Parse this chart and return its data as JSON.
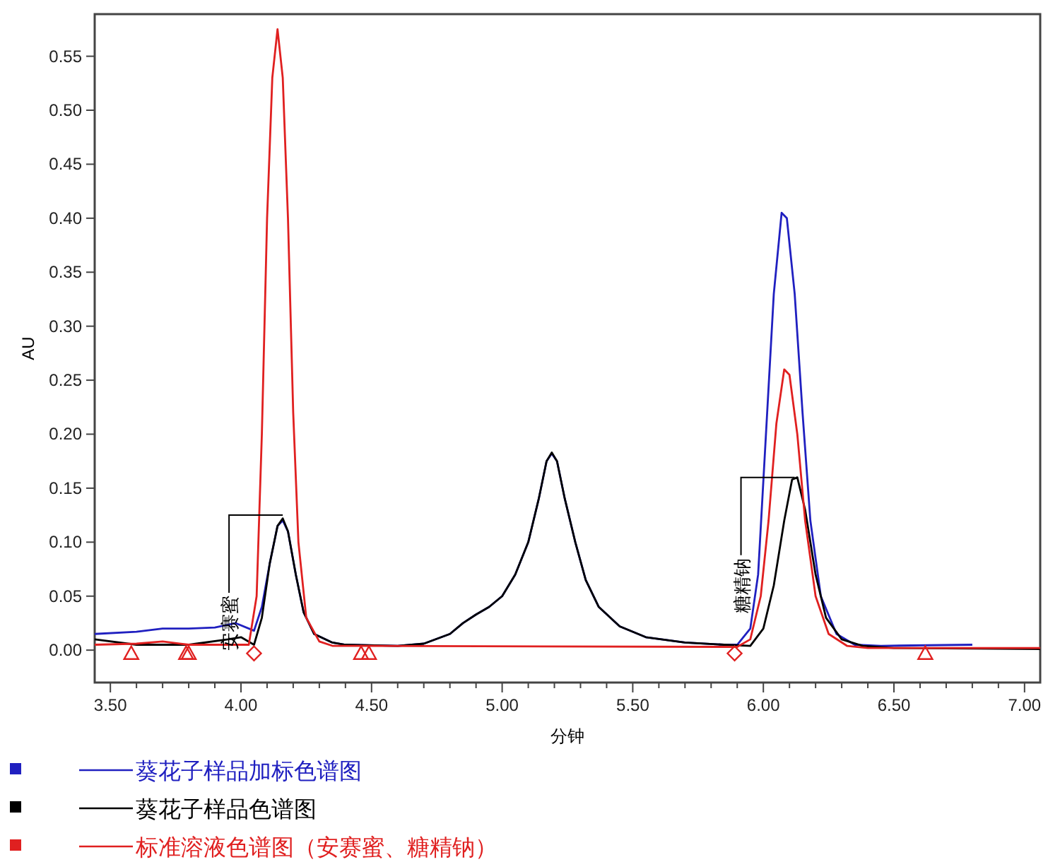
{
  "chart_data": {
    "type": "line",
    "xlabel": "分钟",
    "ylabel": "AU",
    "xlim": [
      3.44,
      7.06
    ],
    "ylim": [
      -0.03,
      0.589
    ],
    "xticks": [
      {
        "value": 3.5,
        "label": "3.50"
      },
      {
        "value": 4.0,
        "label": "4.00"
      },
      {
        "value": 4.5,
        "label": "4.50"
      },
      {
        "value": 5.0,
        "label": "5.00"
      },
      {
        "value": 5.5,
        "label": "5.50"
      },
      {
        "value": 6.0,
        "label": "6.00"
      },
      {
        "value": 6.5,
        "label": "6.50"
      },
      {
        "value": 7.0,
        "label": "7.00"
      }
    ],
    "yticks": [
      {
        "value": 0,
        "label": "0.00"
      },
      {
        "value": 0.05,
        "label": "0.05"
      },
      {
        "value": 0.1,
        "label": "0.10"
      },
      {
        "value": 0.15,
        "label": "0.15"
      },
      {
        "value": 0.2,
        "label": "0.20"
      },
      {
        "value": 0.25,
        "label": "0.25"
      },
      {
        "value": 0.3,
        "label": "0.30"
      },
      {
        "value": 0.35,
        "label": "0.35"
      },
      {
        "value": 0.4,
        "label": "0.40"
      },
      {
        "value": 0.45,
        "label": "0.45"
      },
      {
        "value": 0.5,
        "label": "0.50"
      },
      {
        "value": 0.55,
        "label": "0.55"
      }
    ],
    "grid": false,
    "legend": "bottom",
    "annotations": [
      {
        "text": "安赛蜜",
        "x": 4.16,
        "y": 0.125
      },
      {
        "text": "糖精钠",
        "x": 6.12,
        "y": 0.16
      }
    ],
    "series": [
      {
        "name": "葵花子样品加标色谱图",
        "color": "#2020c0",
        "x": [
          3.44,
          3.6,
          3.7,
          3.8,
          3.9,
          3.98,
          4.05,
          4.08,
          4.11,
          4.14,
          4.16,
          4.18,
          4.21,
          4.24,
          4.28,
          4.35,
          4.4,
          4.6,
          4.7,
          4.8,
          4.85,
          4.9,
          4.95,
          5.0,
          5.05,
          5.1,
          5.14,
          5.17,
          5.19,
          5.21,
          5.24,
          5.28,
          5.32,
          5.37,
          5.45,
          5.55,
          5.7,
          5.85,
          5.9,
          5.95,
          5.98,
          6.01,
          6.04,
          6.07,
          6.09,
          6.12,
          6.15,
          6.18,
          6.22,
          6.28,
          6.35,
          6.45,
          6.8
        ],
        "values": [
          0.015,
          0.017,
          0.02,
          0.02,
          0.021,
          0.025,
          0.018,
          0.04,
          0.08,
          0.115,
          0.12,
          0.11,
          0.07,
          0.035,
          0.015,
          0.007,
          0.005,
          0.004,
          0.006,
          0.015,
          0.025,
          0.033,
          0.04,
          0.05,
          0.07,
          0.1,
          0.14,
          0.175,
          0.182,
          0.175,
          0.14,
          0.1,
          0.065,
          0.04,
          0.022,
          0.012,
          0.007,
          0.005,
          0.005,
          0.02,
          0.07,
          0.2,
          0.33,
          0.405,
          0.4,
          0.33,
          0.22,
          0.12,
          0.05,
          0.015,
          0.005,
          0.004,
          0.005
        ]
      },
      {
        "name": "葵花子样品色谱图",
        "color": "#000000",
        "x": [
          3.44,
          3.6,
          3.8,
          3.95,
          4.0,
          4.05,
          4.08,
          4.11,
          4.14,
          4.16,
          4.18,
          4.21,
          4.24,
          4.28,
          4.35,
          4.4,
          4.6,
          4.7,
          4.8,
          4.85,
          4.9,
          4.95,
          5.0,
          5.05,
          5.1,
          5.14,
          5.17,
          5.19,
          5.21,
          5.24,
          5.28,
          5.32,
          5.37,
          5.45,
          5.55,
          5.7,
          5.85,
          5.95,
          6.0,
          6.04,
          6.08,
          6.11,
          6.13,
          6.16,
          6.2,
          6.24,
          6.3,
          6.38,
          6.5,
          7.06
        ],
        "values": [
          0.01,
          0.005,
          0.005,
          0.01,
          0.012,
          0.005,
          0.03,
          0.08,
          0.115,
          0.122,
          0.11,
          0.07,
          0.035,
          0.015,
          0.007,
          0.005,
          0.004,
          0.006,
          0.015,
          0.025,
          0.033,
          0.04,
          0.05,
          0.07,
          0.1,
          0.14,
          0.175,
          0.183,
          0.175,
          0.14,
          0.1,
          0.065,
          0.04,
          0.022,
          0.012,
          0.007,
          0.005,
          0.004,
          0.02,
          0.06,
          0.12,
          0.158,
          0.16,
          0.13,
          0.07,
          0.03,
          0.01,
          0.004,
          0.002,
          0.001
        ]
      },
      {
        "name": "标准溶液色谱图（安赛蜜、糖精钠）",
        "color": "#e02020",
        "x": [
          3.44,
          3.6,
          3.7,
          3.8,
          3.95,
          4.03,
          4.06,
          4.08,
          4.1,
          4.12,
          4.14,
          4.16,
          4.18,
          4.2,
          4.22,
          4.25,
          4.3,
          4.35,
          5.9,
          5.95,
          5.99,
          6.02,
          6.05,
          6.08,
          6.1,
          6.13,
          6.16,
          6.2,
          6.25,
          6.32,
          6.4,
          7.06
        ],
        "values": [
          0.005,
          0.006,
          0.008,
          0.005,
          0.005,
          0.005,
          0.05,
          0.2,
          0.4,
          0.53,
          0.575,
          0.53,
          0.4,
          0.22,
          0.1,
          0.03,
          0.008,
          0.004,
          0.003,
          0.01,
          0.05,
          0.12,
          0.21,
          0.26,
          0.255,
          0.2,
          0.12,
          0.05,
          0.015,
          0.004,
          0.002,
          0.002
        ]
      },
      {
        "type": "scatter",
        "marker": "triangle",
        "color": "#e02020",
        "x": [
          3.58,
          3.79,
          3.8,
          4.46,
          4.49,
          6.62
        ],
        "values": [
          -0.003,
          -0.003,
          -0.003,
          -0.003,
          -0.003,
          -0.003
        ]
      },
      {
        "type": "scatter",
        "marker": "diamond",
        "color": "#e02020",
        "x": [
          4.05,
          5.89
        ],
        "values": [
          -0.003,
          -0.003
        ]
      }
    ]
  }
}
